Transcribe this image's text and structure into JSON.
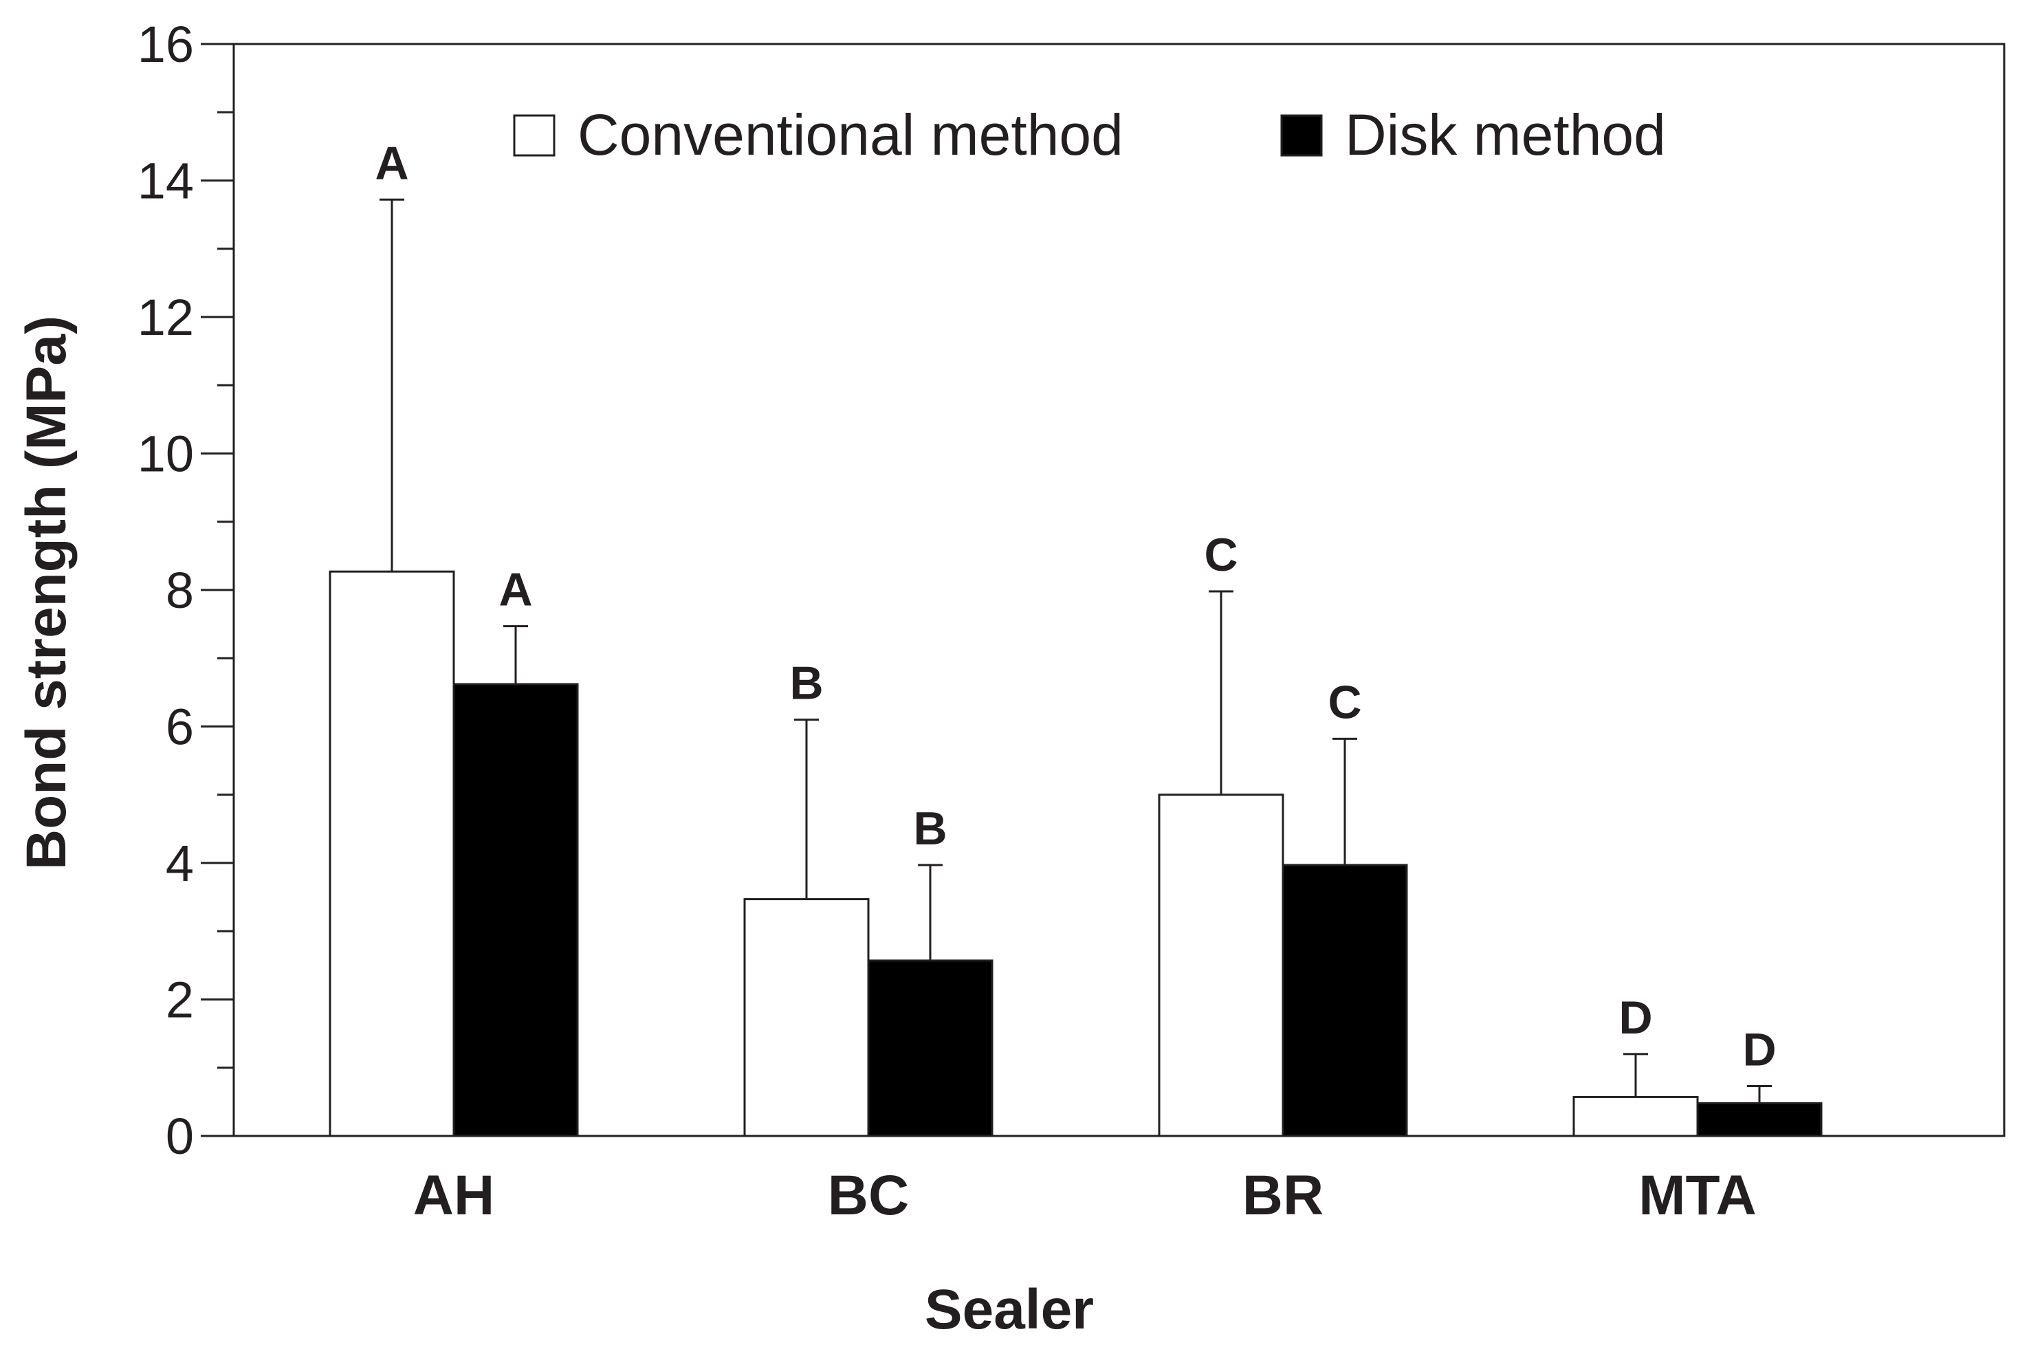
{
  "chart_data": {
    "type": "bar",
    "xlabel": "Sealer",
    "ylabel": "Bond strength (MPa)",
    "ylim": [
      0,
      16
    ],
    "yticks": [
      "0",
      "2",
      "4",
      "6",
      "8",
      "10",
      "12",
      "14",
      "16"
    ],
    "minor_ticks": true,
    "grid": false,
    "legend_placement": "top-center",
    "categories": [
      "AH",
      "BC",
      "BR",
      "MTA"
    ],
    "series": [
      {
        "name": "Conventional method",
        "color": "#ffffff",
        "values": [
          8.27,
          3.47,
          5.0,
          0.57
        ],
        "error_upper": [
          13.72,
          6.1,
          7.98,
          1.2
        ],
        "letters": [
          "A",
          "B",
          "C",
          "D"
        ]
      },
      {
        "name": "Disk method",
        "color": "#000000",
        "values": [
          6.62,
          2.57,
          3.97,
          0.48
        ],
        "error_upper": [
          7.47,
          3.97,
          5.82,
          0.73
        ],
        "letters": [
          "A",
          "B",
          "C",
          "D"
        ]
      }
    ]
  }
}
